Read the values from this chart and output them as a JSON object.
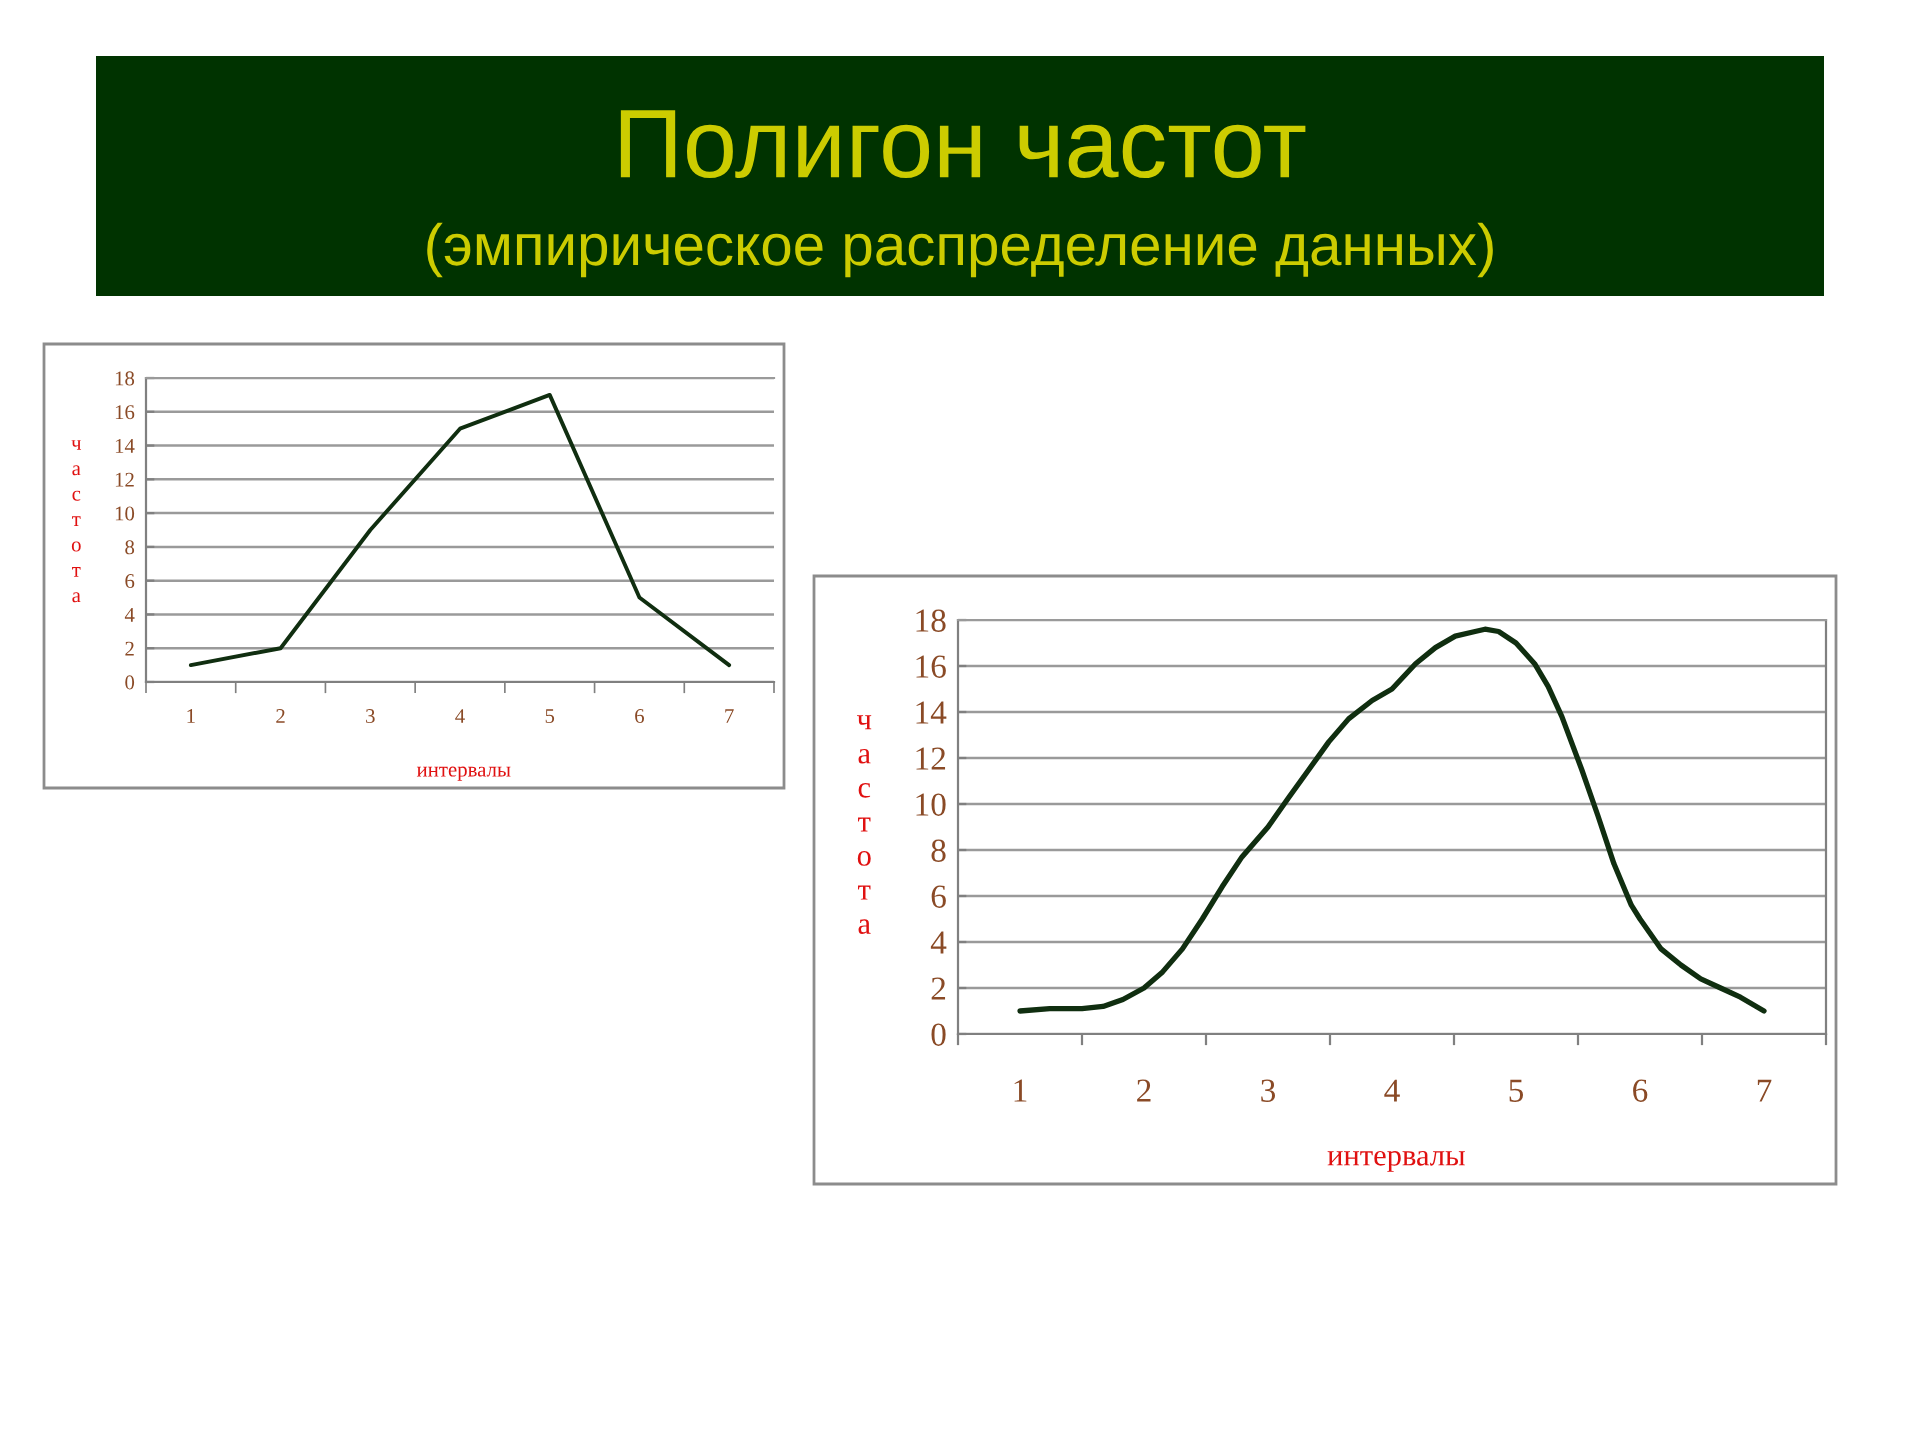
{
  "chart_data": [
    {
      "type": "line",
      "title": "Полигон частот",
      "subtitle": "(эмпирическое распределение данных)",
      "categories": [
        "1",
        "2",
        "3",
        "4",
        "5",
        "6",
        "7"
      ],
      "values": [
        1,
        2,
        9,
        15,
        17,
        5,
        1
      ],
      "color": "#102e10",
      "xlabel": "интервалы",
      "ylabel": "частота",
      "ylim": [
        0,
        18
      ],
      "yticks": [
        0,
        2,
        4,
        6,
        8,
        10,
        12,
        14,
        16,
        18
      ],
      "grid": "y"
    },
    {
      "type": "line",
      "x": [
        1.0,
        1.24,
        1.5,
        1.67,
        1.83,
        2.0,
        2.15,
        2.31,
        2.47,
        2.63,
        2.79,
        3.0,
        3.17,
        3.33,
        3.49,
        3.65,
        3.84,
        4.0,
        4.19,
        4.35,
        4.51,
        4.67,
        4.75,
        4.86,
        5.0,
        5.15,
        5.26,
        5.37,
        5.53,
        5.66,
        5.79,
        5.93,
        6.0,
        6.17,
        6.33,
        6.49,
        6.65,
        6.81,
        7.0
      ],
      "values": [
        1.0,
        1.1,
        1.1,
        1.2,
        1.5,
        2.0,
        2.7,
        3.7,
        5.0,
        6.4,
        7.7,
        9.0,
        10.3,
        11.5,
        12.7,
        13.7,
        14.5,
        15.0,
        16.1,
        16.8,
        17.3,
        17.5,
        17.6,
        17.5,
        17.0,
        16.1,
        15.1,
        13.8,
        11.5,
        9.5,
        7.4,
        5.6,
        5.0,
        3.7,
        3.0,
        2.4,
        2.0,
        1.6,
        1.0
      ],
      "color": "#102e10",
      "xlabel": "интервалы",
      "ylabel": "частота",
      "xlim": [
        0.5,
        7.5
      ],
      "xticks": [
        {
          "value": 0.5,
          "label": null
        },
        1,
        {
          "value": 1.5,
          "label": null
        },
        2,
        {
          "value": 2.5,
          "label": null
        },
        3,
        {
          "value": 3.5,
          "label": null
        },
        4,
        {
          "value": 4.5,
          "label": null
        },
        5,
        {
          "value": 5.5,
          "label": null
        },
        6,
        {
          "value": 6.5,
          "label": null
        },
        7,
        {
          "value": 7.5,
          "label": null
        }
      ],
      "ylim": [
        0,
        18
      ],
      "yticks": [
        0,
        2,
        4,
        6,
        8,
        10,
        12,
        14,
        16,
        18
      ],
      "grid": "y"
    }
  ]
}
